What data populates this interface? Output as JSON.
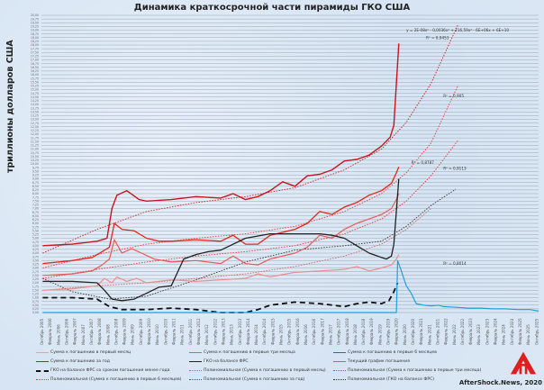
{
  "chart_data": {
    "type": "line",
    "title": "Динамика краткосрочной части пирамиды ГКО США",
    "ylabel": "триллионы долларов США",
    "xlabel": "",
    "ylim": [
      0,
      20
    ],
    "xlim": [
      2005.75,
      2025.85
    ],
    "grid": true,
    "legend_position": "bottom",
    "x_tick_labels": [
      "Октябрь 2005",
      "Февраль 2006",
      "Июнь 2006",
      "Октябрь 2006",
      "Февраль 2007",
      "Июнь 2007",
      "Октябрь 2007",
      "Февраль 2008",
      "Июнь 2008",
      "Октябрь 2008",
      "Февраль 2009",
      "Июнь 2009",
      "Октябрь 2009",
      "Февраль 2010",
      "Июнь 2010",
      "Октябрь 2010",
      "Февраль 2011",
      "Июнь 2011",
      "Октябрь 2011",
      "Февраль 2012",
      "Июнь 2012",
      "Октябрь 2012",
      "Февраль 2013",
      "Июнь 2013",
      "Октябрь 2013",
      "Февраль 2014",
      "Июнь 2014",
      "Октябрь 2014",
      "Февраль 2015",
      "Июнь 2015",
      "Октябрь 2015",
      "Февраль 2016",
      "Июнь 2016",
      "Октябрь 2016",
      "Февраль 2017",
      "Июнь 2017",
      "Октябрь 2017",
      "Февраль 2018",
      "Июнь 2018",
      "Октябрь 2018",
      "Февраль 2019",
      "Июнь 2019",
      "Октябрь 2019",
      "Февраль 2020",
      "Июнь 2020",
      "Октябрь 2020",
      "Февраль 2021",
      "Июнь 2021",
      "Октябрь 2021",
      "Февраль 2022",
      "Июнь 2022",
      "Октябрь 2022",
      "Февраль 2023",
      "Июнь 2023",
      "Октябрь 2023",
      "Февраль 2024",
      "Июнь 2024",
      "Октябрь 2024",
      "Февраль 2025",
      "Июнь 2025",
      "Октябрь 2025"
    ],
    "series": [
      {
        "name": "Сумма к погашению в первый месяц",
        "color": "#f08c8c",
        "style": "solid",
        "width": 1.2,
        "x": [
          2005.8,
          2007.0,
          2008.0,
          2008.3,
          2008.6,
          2008.8,
          2009.2,
          2009.6,
          2010.0,
          2011.0,
          2012.0,
          2013.0,
          2014.0,
          2014.5,
          2015.0,
          2016.0,
          2017.0,
          2018.0,
          2018.5,
          2019.0,
          2019.5,
          2019.9,
          2020.1,
          2020.2
        ],
        "y": [
          1.5,
          1.6,
          1.8,
          2.3,
          2.0,
          2.4,
          2.1,
          2.3,
          2.0,
          2.2,
          2.1,
          2.2,
          2.3,
          2.6,
          2.4,
          2.7,
          2.8,
          2.9,
          3.1,
          2.8,
          3.0,
          3.2,
          3.6,
          3.9
        ]
      },
      {
        "name": "Сумма к погашению в первые три месяца",
        "color": "#e85a5a",
        "style": "solid",
        "width": 1.2,
        "x": [
          2005.8,
          2007.0,
          2007.8,
          2008.2,
          2008.5,
          2008.7,
          2009.0,
          2009.4,
          2009.8,
          2010.3,
          2011.0,
          2012.0,
          2013.0,
          2013.5,
          2014.0,
          2014.5,
          2015.0,
          2016.0,
          2016.5,
          2017.0,
          2017.5,
          2018.0,
          2018.5,
          2019.0,
          2019.5,
          2019.9,
          2020.1,
          2020.2
        ],
        "y": [
          2.5,
          2.6,
          2.8,
          3.2,
          3.6,
          4.9,
          4.0,
          4.3,
          4.0,
          3.6,
          3.4,
          3.5,
          3.3,
          3.8,
          3.3,
          3.2,
          3.6,
          4.0,
          4.4,
          5.2,
          5.0,
          5.6,
          6.0,
          6.3,
          6.6,
          7.0,
          7.6,
          8.0
        ]
      },
      {
        "name": "Сумма к погашению в первые 6 месяцев",
        "color": "#e0281e",
        "style": "solid",
        "width": 1.3,
        "x": [
          2005.8,
          2007.0,
          2007.8,
          2008.2,
          2008.5,
          2008.7,
          2009.0,
          2009.5,
          2010.0,
          2010.5,
          2011.0,
          2012.0,
          2013.0,
          2013.5,
          2014.0,
          2014.5,
          2015.0,
          2016.0,
          2016.5,
          2017.0,
          2017.5,
          2018.0,
          2018.5,
          2019.0,
          2019.5,
          2019.9,
          2020.1,
          2020.2
        ],
        "y": [
          3.3,
          3.5,
          3.7,
          4.1,
          4.4,
          6.0,
          5.6,
          5.5,
          5.0,
          4.8,
          4.8,
          4.9,
          4.8,
          5.2,
          4.6,
          4.6,
          5.2,
          5.6,
          6.0,
          6.8,
          6.6,
          7.1,
          7.4,
          7.9,
          8.2,
          8.7,
          9.4,
          9.8
        ]
      },
      {
        "name": "Сумма к погашению за год",
        "color": "#c8141e",
        "style": "solid",
        "width": 1.4,
        "x": [
          2005.8,
          2007.0,
          2008.0,
          2008.4,
          2008.6,
          2008.8,
          2009.2,
          2009.7,
          2010.0,
          2011.0,
          2012.0,
          2013.0,
          2013.5,
          2014.0,
          2014.5,
          2015.0,
          2015.5,
          2016.0,
          2016.5,
          2017.0,
          2017.5,
          2018.0,
          2018.5,
          2019.0,
          2019.5,
          2019.85,
          2020.0,
          2020.1,
          2020.2
        ],
        "y": [
          4.5,
          4.6,
          4.8,
          5.0,
          7.0,
          7.9,
          8.2,
          7.6,
          7.5,
          7.6,
          7.8,
          7.7,
          8.0,
          7.6,
          7.8,
          8.2,
          8.8,
          8.5,
          9.2,
          9.3,
          9.6,
          10.2,
          10.3,
          10.6,
          11.2,
          11.8,
          12.6,
          15.4,
          18.1
        ]
      },
      {
        "name": "ГКО на балансе ФРС",
        "color": "#222222",
        "style": "solid",
        "width": 1.3,
        "x": [
          2005.8,
          2007.0,
          2008.0,
          2008.3,
          2008.6,
          2009.0,
          2009.5,
          2010.0,
          2010.5,
          2011.0,
          2011.5,
          2012.0,
          2012.5,
          2013.0,
          2014.0,
          2015.0,
          2016.0,
          2017.0,
          2017.5,
          2018.0,
          2018.5,
          2019.0,
          2019.5,
          2019.7,
          2019.9,
          2020.0,
          2020.2
        ],
        "y": [
          2.1,
          2.1,
          2.0,
          1.5,
          0.9,
          0.8,
          0.9,
          1.3,
          1.7,
          1.8,
          3.6,
          3.9,
          4.1,
          4.2,
          5.0,
          5.3,
          5.3,
          5.3,
          5.2,
          5.0,
          4.5,
          4.0,
          3.7,
          3.6,
          3.8,
          4.6,
          9.0
        ]
      },
      {
        "name": "ГКО на балансе ФРС со сроком погашения менее года",
        "color": "#111111",
        "style": "dashed",
        "width": 1.8,
        "x": [
          2005.8,
          2007.0,
          2008.0,
          2008.5,
          2009.0,
          2010.0,
          2011.0,
          2012.0,
          2013.0,
          2014.0,
          2014.5,
          2015.0,
          2016.0,
          2017.0,
          2018.0,
          2018.5,
          2019.0,
          2019.5,
          2019.8,
          2020.0,
          2020.15
        ],
        "y": [
          1.0,
          1.0,
          0.9,
          0.4,
          0.2,
          0.2,
          0.3,
          0.2,
          0.0,
          0.0,
          0.2,
          0.5,
          0.7,
          0.6,
          0.4,
          0.6,
          0.7,
          0.6,
          0.8,
          1.4,
          2.0
        ]
      },
      {
        "name": "Текущий график погашения",
        "color": "#1ea0e0",
        "style": "solid",
        "width": 1.2,
        "x": [
          2005.8,
          2020.1,
          2020.15,
          2020.3,
          2020.5,
          2020.7,
          2020.9,
          2021.2,
          2021.5,
          2021.8,
          2022.0,
          2022.5,
          2023.0,
          2023.5,
          2024.0,
          2024.5,
          2025.0,
          2025.5,
          2025.85
        ],
        "y": [
          0.0,
          0.0,
          3.5,
          2.8,
          1.8,
          1.3,
          0.6,
          0.5,
          0.45,
          0.5,
          0.4,
          0.35,
          0.3,
          0.3,
          0.25,
          0.25,
          0.2,
          0.2,
          0.1
        ]
      }
    ],
    "trendlines": [
      {
        "name": "Полиномиальная (Сумма к погашению в первый месяц)",
        "color": "#d06060",
        "r2": "R² = 0,8787",
        "x": [
          2005.8,
          2008,
          2010,
          2012,
          2014,
          2016,
          2018,
          2019.5,
          2020.5,
          2021.5
        ],
        "y": [
          1.5,
          1.8,
          2.0,
          2.3,
          2.6,
          3.1,
          3.8,
          4.6,
          5.6,
          7.0
        ]
      },
      {
        "name": "Полиномиальная (Сумма к погашению в первые три месяца)",
        "color": "#e03c3c",
        "r2": "R² = 0,9113",
        "x": [
          2005.8,
          2008,
          2010,
          2012,
          2014,
          2016,
          2018,
          2019.5,
          2020.5,
          2021.5,
          2022.6
        ],
        "y": [
          2.3,
          2.9,
          3.4,
          3.8,
          4.1,
          4.5,
          5.3,
          6.3,
          7.5,
          9.2,
          11.6
        ]
      },
      {
        "name": "Полиномиальная (Сумма к погашению в первые 6 месяцев)",
        "color": "#e83c3c",
        "r2": "R² = 0,905",
        "x": [
          2005.8,
          2008,
          2010,
          2012,
          2014,
          2016,
          2018,
          2019.5,
          2020.5,
          2021.5,
          2022.6
        ],
        "y": [
          3.0,
          3.9,
          4.6,
          5.0,
          5.3,
          5.8,
          6.8,
          8.0,
          9.4,
          11.4,
          15.3
        ]
      },
      {
        "name": "Полиномиальная (Сумма к погашению за год)",
        "color": "#c81e28",
        "r2": "R² = 0,9453",
        "x": [
          2005.8,
          2008,
          2010,
          2012,
          2014,
          2016,
          2018,
          2019.5,
          2020.5,
          2021.5,
          2022.6
        ],
        "y": [
          4.0,
          5.6,
          6.8,
          7.4,
          7.8,
          8.4,
          9.6,
          11.0,
          12.8,
          15.4,
          19.4
        ]
      },
      {
        "name": "Полиномиальная (ГКО на балансе ФРС)",
        "color": "#333333",
        "r2": "R² = 0,8014",
        "x": [
          2005.8,
          2007,
          2008.5,
          2010,
          2012,
          2014,
          2016,
          2018,
          2019.5,
          2020.5,
          2021.5,
          2022.5
        ],
        "y": [
          2.3,
          1.4,
          0.9,
          1.1,
          2.2,
          3.4,
          4.2,
          4.5,
          4.8,
          5.8,
          7.2,
          8.3
        ]
      }
    ],
    "annotations": [
      {
        "text": "y = 2E-08x⁵ - 0,0036x⁴ + 216,59x³ - 6E+06x + 6E+10",
        "at": [
          2020.5,
          18.9
        ]
      },
      {
        "text": "R² = 0,9453",
        "at": [
          2021.3,
          18.4
        ]
      },
      {
        "text": "R² = 0,905",
        "at": [
          2022.0,
          14.5
        ]
      },
      {
        "text": "R² = 0,8787",
        "at": [
          2020.7,
          10.0
        ]
      },
      {
        "text": "R² = 0,9113",
        "at": [
          2022.0,
          9.6
        ]
      },
      {
        "text": "R² = 0,8014",
        "at": [
          2022.0,
          3.2
        ]
      }
    ]
  },
  "legend": [
    {
      "label": "Сумма к погашению в первый месяц",
      "color": "#f0a0a0",
      "style": "solid"
    },
    {
      "label": "Сумма к погашению в первые три месяца",
      "color": "#e85a5a",
      "style": "solid"
    },
    {
      "label": "Сумма к погашению в первые 6 месяцев",
      "color": "#e0281e",
      "style": "solid"
    },
    {
      "label": "Сумма к погашению за год",
      "color": "#c8141e",
      "style": "solid"
    },
    {
      "label": "ГКО на балансе ФРС",
      "color": "#222222",
      "style": "solid"
    },
    {
      "label": "Текущий график погашения",
      "color": "#1ea0e0",
      "style": "solid"
    },
    {
      "label": "ГКО на балансе ФРС со сроком погашения менее года",
      "color": "#111111",
      "style": "dashed"
    },
    {
      "label": "Полиномиальная (Сумма к погашению в первый месяц)",
      "color": "#d06060",
      "style": "dotted"
    },
    {
      "label": "Полиномиальная (Сумма к погашению в первые три месяца)",
      "color": "#e03c3c",
      "style": "dotted"
    },
    {
      "label": "Полиномиальная (Сумма к погашению в первые 6 месяцев)",
      "color": "#e83c3c",
      "style": "dotted"
    },
    {
      "label": "Полиномиальная (Сумма к погашению за год)",
      "color": "#c81e28",
      "style": "dotted"
    },
    {
      "label": "Полиномиальная (ГКО на балансе ФРС)",
      "color": "#333333",
      "style": "dotted"
    }
  ],
  "credit": "AfterShock.News, 2020",
  "logo": "aftershock-logo-icon"
}
